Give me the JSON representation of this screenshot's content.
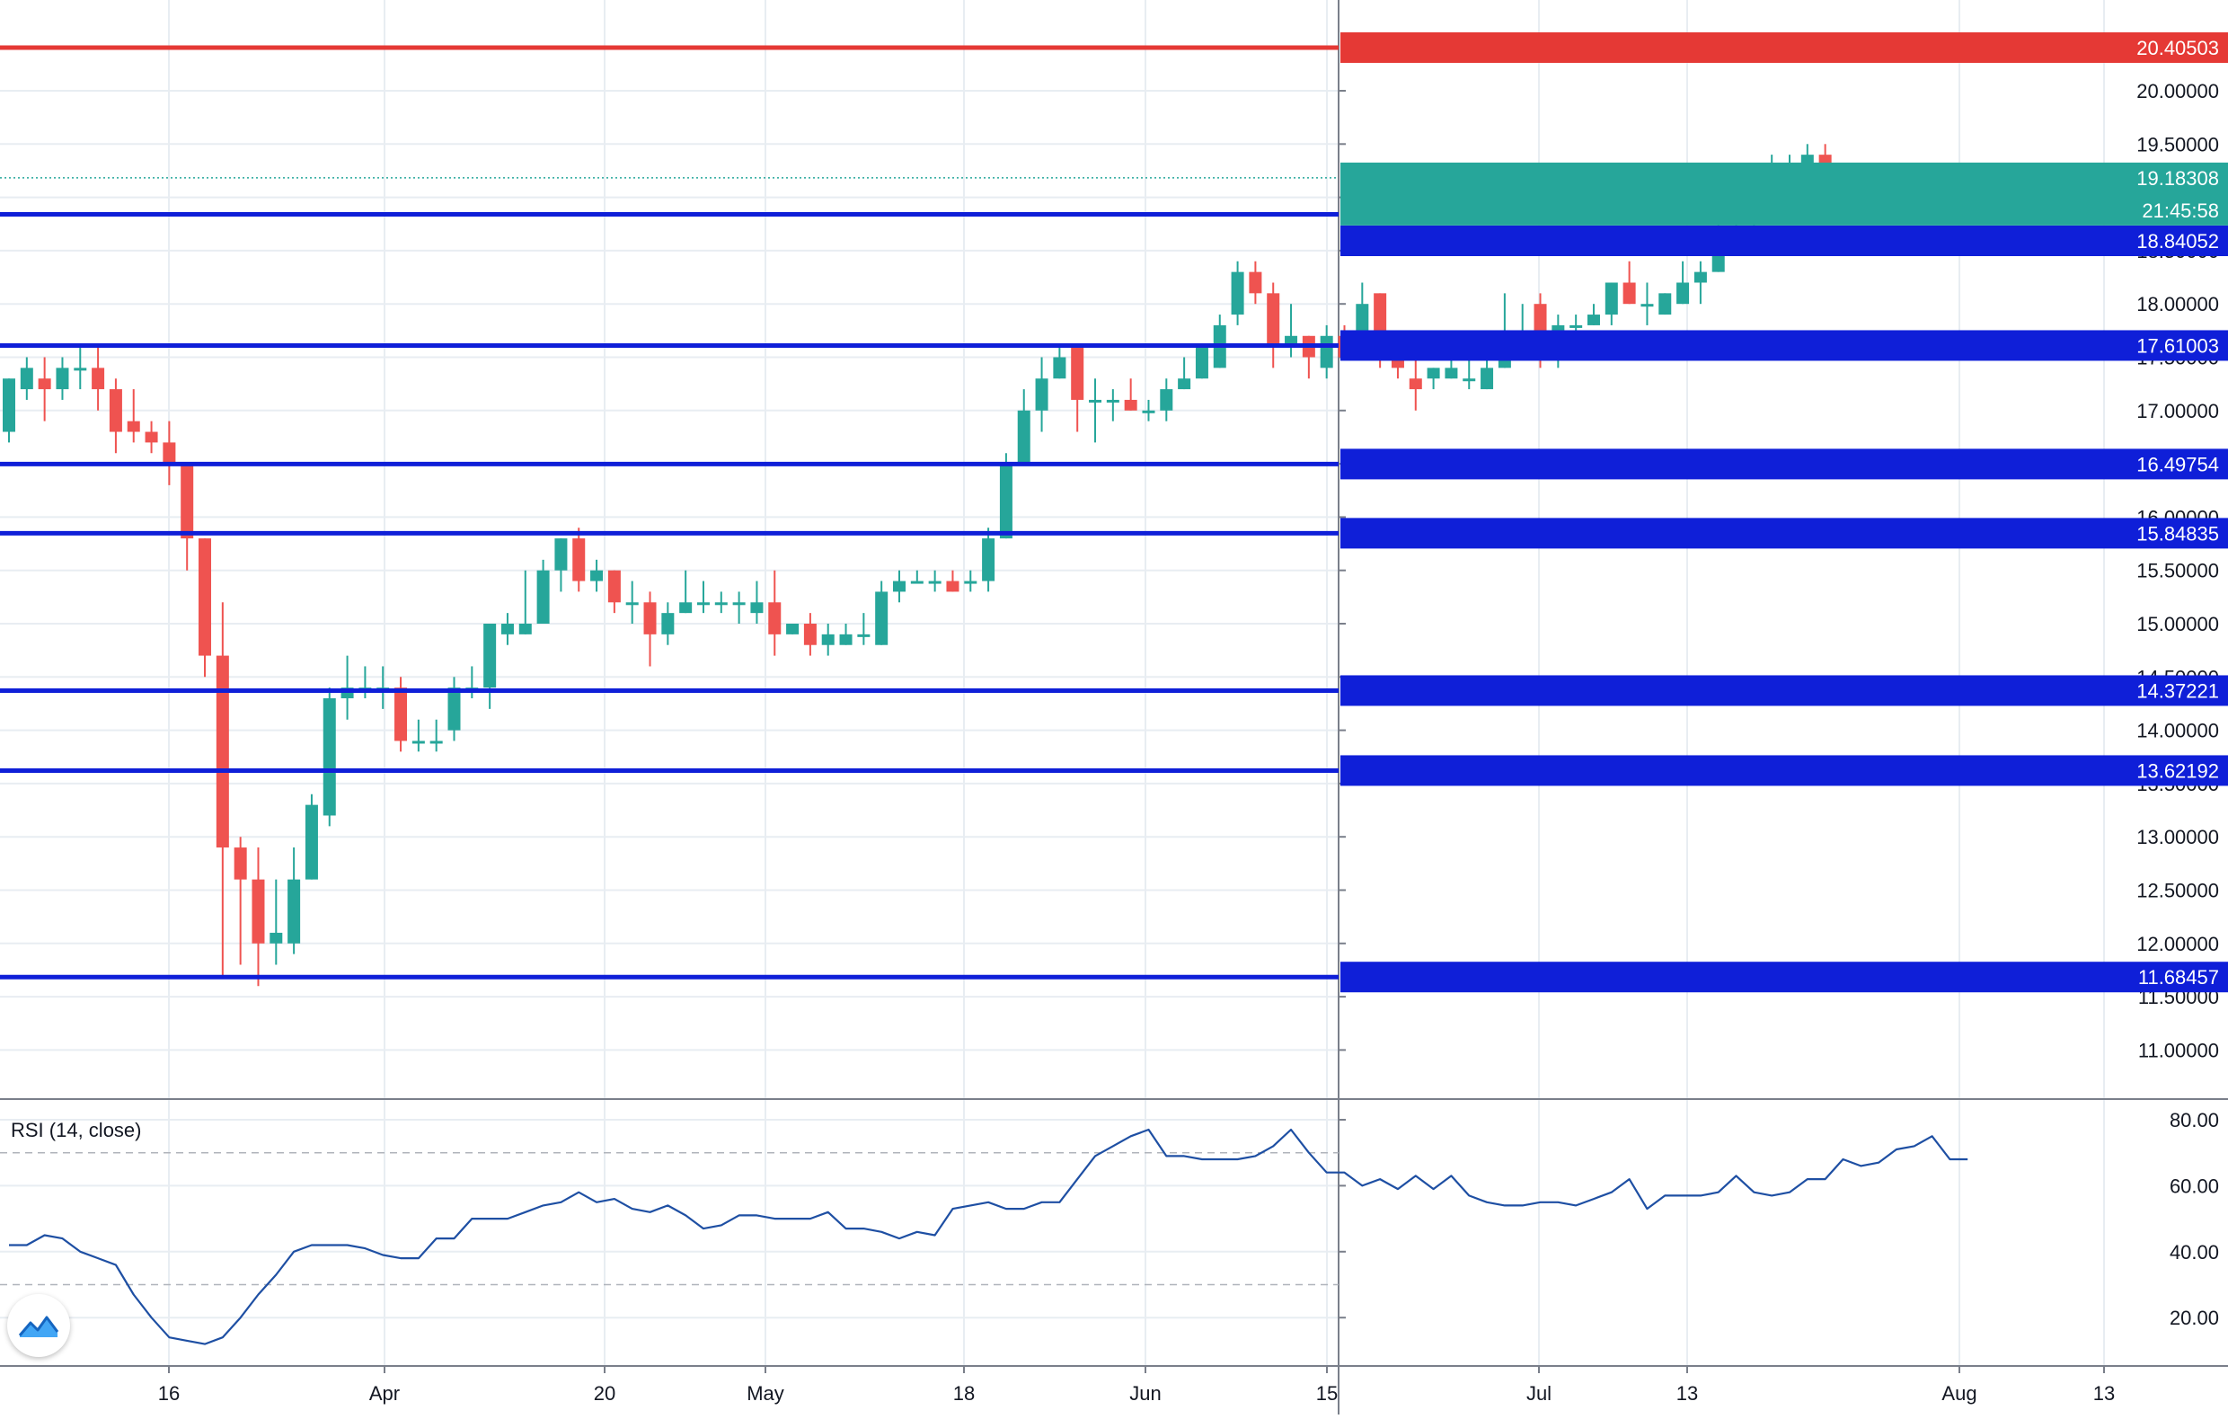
{
  "chart_data": [
    {
      "type": "candlestick",
      "x_ticks": [
        "16",
        "Apr",
        "20",
        "May",
        "18",
        "Jun",
        "15",
        "Jul",
        "13",
        "Aug",
        "13"
      ],
      "y_ticks": [
        "11.00000",
        "11.50000",
        "12.00000",
        "12.50000",
        "13.00000",
        "13.50000",
        "14.00000",
        "14.50000",
        "15.00000",
        "15.50000",
        "16.00000",
        "16.50000",
        "17.00000",
        "17.50000",
        "18.00000",
        "18.50000",
        "19.00000",
        "19.50000",
        "20.00000"
      ],
      "ylim": [
        10.5,
        20.8
      ],
      "grid": true,
      "ohlc": [
        [
          16.8,
          17.3,
          17.3,
          16.7
        ],
        [
          17.2,
          17.4,
          17.5,
          17.1
        ],
        [
          17.3,
          17.2,
          17.5,
          16.9
        ],
        [
          17.2,
          17.4,
          17.5,
          17.1
        ],
        [
          17.4,
          17.4,
          17.6,
          17.2
        ],
        [
          17.4,
          17.2,
          17.6,
          17.0
        ],
        [
          17.2,
          16.8,
          17.3,
          16.6
        ],
        [
          16.9,
          16.8,
          17.2,
          16.7
        ],
        [
          16.8,
          16.7,
          16.9,
          16.6
        ],
        [
          16.7,
          16.5,
          16.9,
          16.3
        ],
        [
          16.5,
          15.8,
          16.5,
          15.5
        ],
        [
          15.8,
          14.7,
          15.8,
          14.5
        ],
        [
          14.7,
          12.9,
          15.2,
          11.7
        ],
        [
          12.9,
          12.6,
          13.0,
          11.8
        ],
        [
          12.6,
          12.0,
          12.9,
          11.6
        ],
        [
          12.0,
          12.1,
          12.6,
          11.8
        ],
        [
          12.0,
          12.6,
          12.9,
          11.9
        ],
        [
          12.6,
          13.3,
          13.4,
          12.6
        ],
        [
          13.2,
          14.3,
          14.4,
          13.1
        ],
        [
          14.3,
          14.4,
          14.7,
          14.1
        ],
        [
          14.4,
          14.4,
          14.6,
          14.3
        ],
        [
          14.4,
          14.4,
          14.6,
          14.2
        ],
        [
          14.4,
          13.9,
          14.5,
          13.8
        ],
        [
          13.9,
          13.9,
          14.1,
          13.8
        ],
        [
          13.9,
          13.9,
          14.1,
          13.8
        ],
        [
          14.0,
          14.4,
          14.5,
          13.9
        ],
        [
          14.4,
          14.4,
          14.6,
          14.3
        ],
        [
          14.4,
          15.0,
          15.0,
          14.2
        ],
        [
          14.9,
          15.0,
          15.1,
          14.8
        ],
        [
          14.9,
          15.0,
          15.5,
          14.9
        ],
        [
          15.0,
          15.5,
          15.6,
          15.0
        ],
        [
          15.5,
          15.8,
          15.8,
          15.3
        ],
        [
          15.8,
          15.4,
          15.9,
          15.3
        ],
        [
          15.4,
          15.5,
          15.6,
          15.3
        ],
        [
          15.5,
          15.2,
          15.5,
          15.1
        ],
        [
          15.2,
          15.2,
          15.4,
          15.0
        ],
        [
          15.2,
          14.9,
          15.3,
          14.6
        ],
        [
          14.9,
          15.1,
          15.2,
          14.8
        ],
        [
          15.1,
          15.2,
          15.5,
          15.1
        ],
        [
          15.2,
          15.2,
          15.4,
          15.1
        ],
        [
          15.2,
          15.2,
          15.3,
          15.1
        ],
        [
          15.2,
          15.2,
          15.3,
          15.0
        ],
        [
          15.1,
          15.2,
          15.4,
          15.0
        ],
        [
          15.2,
          14.9,
          15.5,
          14.7
        ],
        [
          14.9,
          15.0,
          15.0,
          14.9
        ],
        [
          15.0,
          14.8,
          15.1,
          14.7
        ],
        [
          14.8,
          14.9,
          15.0,
          14.7
        ],
        [
          14.8,
          14.9,
          15.0,
          14.8
        ],
        [
          14.9,
          14.9,
          15.1,
          14.8
        ],
        [
          14.8,
          15.3,
          15.4,
          14.8
        ],
        [
          15.3,
          15.4,
          15.5,
          15.2
        ],
        [
          15.4,
          15.4,
          15.5,
          15.4
        ],
        [
          15.4,
          15.4,
          15.5,
          15.3
        ],
        [
          15.4,
          15.3,
          15.5,
          15.3
        ],
        [
          15.4,
          15.4,
          15.5,
          15.3
        ],
        [
          15.4,
          15.8,
          15.9,
          15.3
        ],
        [
          15.8,
          16.5,
          16.6,
          15.8
        ],
        [
          16.5,
          17.0,
          17.2,
          16.5
        ],
        [
          17.0,
          17.3,
          17.5,
          16.8
        ],
        [
          17.3,
          17.5,
          17.6,
          17.3
        ],
        [
          17.6,
          17.1,
          17.6,
          16.8
        ],
        [
          17.1,
          17.1,
          17.3,
          16.7
        ],
        [
          17.1,
          17.1,
          17.2,
          16.9
        ],
        [
          17.1,
          17.0,
          17.3,
          17.0
        ],
        [
          17.0,
          17.0,
          17.1,
          16.9
        ],
        [
          17.0,
          17.2,
          17.3,
          16.9
        ],
        [
          17.2,
          17.3,
          17.5,
          17.2
        ],
        [
          17.3,
          17.6,
          17.6,
          17.3
        ],
        [
          17.4,
          17.8,
          17.9,
          17.4
        ],
        [
          17.9,
          18.3,
          18.4,
          17.8
        ],
        [
          18.3,
          18.1,
          18.4,
          18.0
        ],
        [
          18.1,
          17.6,
          18.2,
          17.4
        ],
        [
          17.6,
          17.7,
          18.0,
          17.5
        ],
        [
          17.7,
          17.5,
          17.7,
          17.3
        ],
        [
          17.4,
          17.7,
          17.8,
          17.3
        ],
        [
          17.7,
          17.5,
          17.8,
          17.5
        ],
        [
          17.5,
          18.0,
          18.2,
          17.5
        ],
        [
          18.1,
          17.5,
          18.1,
          17.4
        ],
        [
          17.5,
          17.4,
          17.6,
          17.3
        ],
        [
          17.3,
          17.2,
          17.5,
          17.0
        ],
        [
          17.3,
          17.4,
          17.4,
          17.2
        ],
        [
          17.3,
          17.4,
          17.6,
          17.3
        ],
        [
          17.3,
          17.3,
          17.5,
          17.2
        ],
        [
          17.2,
          17.4,
          17.6,
          17.2
        ],
        [
          17.4,
          17.5,
          18.1,
          17.4
        ],
        [
          17.5,
          17.6,
          18.0,
          17.5
        ],
        [
          18.0,
          17.5,
          18.1,
          17.4
        ],
        [
          17.5,
          17.8,
          17.9,
          17.4
        ],
        [
          17.8,
          17.8,
          17.9,
          17.6
        ],
        [
          17.8,
          17.9,
          18.0,
          17.8
        ],
        [
          17.9,
          18.2,
          18.2,
          17.8
        ],
        [
          18.2,
          18.0,
          18.4,
          18.0
        ],
        [
          18.0,
          18.0,
          18.2,
          17.8
        ],
        [
          17.9,
          18.1,
          18.1,
          17.9
        ],
        [
          18.0,
          18.2,
          18.4,
          18.0
        ],
        [
          18.2,
          18.3,
          18.4,
          18.0
        ],
        [
          18.3,
          18.7,
          18.8,
          18.3
        ],
        [
          18.7,
          18.7,
          19.1,
          18.6
        ],
        [
          18.6,
          18.7,
          18.8,
          18.5
        ],
        [
          18.8,
          19.1,
          19.4,
          18.8
        ],
        [
          19.1,
          19.2,
          19.4,
          19.0
        ],
        [
          19.2,
          19.4,
          19.5,
          19.1
        ],
        [
          19.4,
          19.2,
          19.5,
          19.1
        ],
        [
          19.2,
          19.2,
          19.3,
          19.1
        ]
      ],
      "levels": [
        {
          "value": 20.40503,
          "label": "20.40503",
          "color": "#e53935"
        },
        {
          "value": 18.84052,
          "label": "18.84052",
          "color": "#0f1fd8"
        },
        {
          "value": 17.61003,
          "label": "17.61003",
          "color": "#0f1fd8"
        },
        {
          "value": 16.49754,
          "label": "16.49754",
          "color": "#0f1fd8"
        },
        {
          "value": 15.84835,
          "label": "15.84835",
          "color": "#0f1fd8"
        },
        {
          "value": 14.37221,
          "label": "14.37221",
          "color": "#0f1fd8"
        },
        {
          "value": 13.62192,
          "label": "13.62192",
          "color": "#0f1fd8"
        },
        {
          "value": 11.68457,
          "label": "11.68457",
          "color": "#0f1fd8"
        }
      ],
      "last_price": {
        "value": 19.18308,
        "label": "19.18308",
        "countdown": "21:45:58",
        "color": "#26a69a"
      },
      "up_color": "#26a69a",
      "down_color": "#ef5350"
    },
    {
      "type": "line",
      "indicator_label": "RSI (14, close)",
      "y_ticks": [
        "20.00",
        "40.00",
        "60.00",
        "80.00"
      ],
      "ylim": [
        7,
        86
      ],
      "bands": [
        30,
        70
      ],
      "line_color": "#1e4fa3",
      "values": [
        42,
        42,
        45,
        44,
        40,
        38,
        36,
        27,
        20,
        14,
        13,
        12,
        14,
        20,
        27,
        33,
        40,
        42,
        42,
        42,
        41,
        39,
        38,
        38,
        44,
        44,
        50,
        50,
        50,
        52,
        54,
        55,
        58,
        55,
        56,
        53,
        52,
        54,
        51,
        47,
        48,
        51,
        51,
        50,
        50,
        50,
        52,
        47,
        47,
        46,
        44,
        46,
        45,
        53,
        54,
        55,
        53,
        53,
        55,
        55,
        62,
        69,
        72,
        75,
        77,
        69,
        69,
        68,
        68,
        68,
        69,
        72,
        77,
        70,
        64,
        64,
        60,
        62,
        59,
        63,
        59,
        63,
        57,
        55,
        54,
        54,
        55,
        55,
        54,
        56,
        58,
        62,
        53,
        57,
        57,
        57,
        58,
        63,
        58,
        57,
        58,
        62,
        62,
        68,
        66,
        67,
        71,
        72,
        75,
        68,
        68
      ]
    }
  ],
  "logo": {
    "name": "tradingview-logo-icon"
  }
}
